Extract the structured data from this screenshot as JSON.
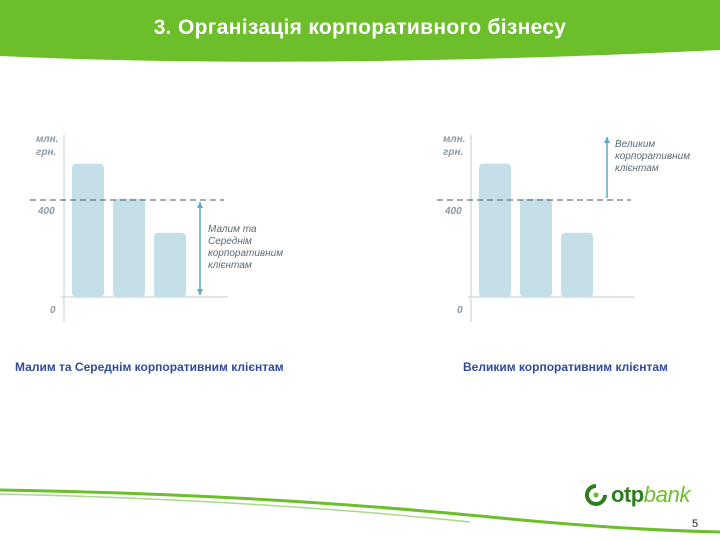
{
  "header": {
    "title": "3. Організація корпоративного бізнесу",
    "color": "#6cbf2a"
  },
  "chart_data": [
    {
      "type": "bar",
      "categories": [
        "",
        "",
        ""
      ],
      "values": [
        550,
        405,
        265
      ],
      "threshold": 400,
      "yaxis_label_lines": [
        "млн.",
        "грн."
      ],
      "yticks": [
        "400",
        "0"
      ],
      "annotation_lines": [
        "Малим та",
        "Середнім",
        "корпоративним",
        "клієнтам"
      ],
      "annotation_range": "below threshold",
      "caption": "Малим та Середнім корпоративним клієнтам",
      "bar_color": "#c5dfe8"
    },
    {
      "type": "bar",
      "categories": [
        "",
        "",
        ""
      ],
      "values": [
        550,
        405,
        265
      ],
      "threshold": 400,
      "yaxis_label_lines": [
        "млн.",
        "грн."
      ],
      "yticks": [
        "400",
        "0"
      ],
      "annotation_lines": [
        "Великим",
        "корпоративним",
        "клієнтам"
      ],
      "annotation_range": "above threshold",
      "caption": "Великим корпоративним клієнтам",
      "bar_color": "#c5dfe8"
    }
  ],
  "footer": {
    "logo_otp": "otp",
    "logo_bank": "bank",
    "page_number": "5"
  }
}
